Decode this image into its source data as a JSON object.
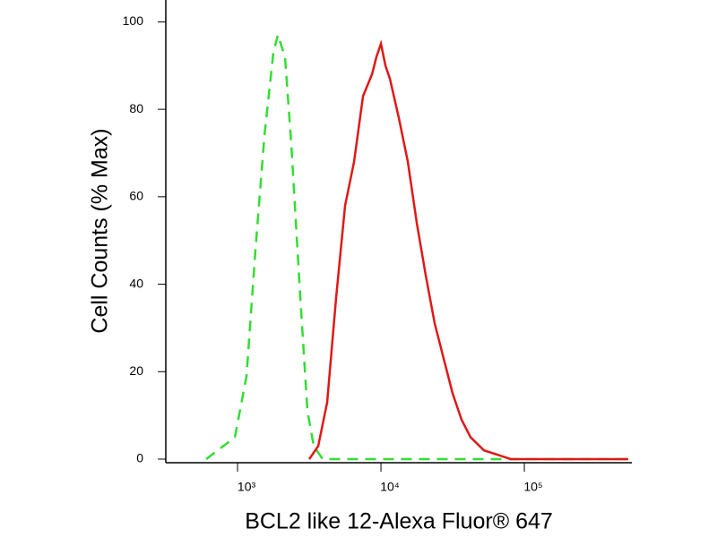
{
  "chart_data": {
    "type": "line",
    "xlabel": "BCL2 like 12-Alexa Fluor® 647",
    "ylabel": "Cell Counts (% Max)",
    "xscale": "log",
    "xlim": [
      316,
      562000
    ],
    "ylim": [
      0,
      105
    ],
    "xticks": [
      {
        "value": 1000,
        "label": "10³"
      },
      {
        "value": 10000,
        "label": "10⁴"
      },
      {
        "value": 100000,
        "label": "10⁵"
      }
    ],
    "yticks": [
      0,
      20,
      40,
      60,
      80,
      100
    ],
    "series": [
      {
        "color": "#33dd33",
        "dash": true,
        "x": [
          604,
          958,
          1155,
          1334,
          1540,
          1778,
          1911,
          2143,
          2371,
          2738,
          3072,
          3400,
          3926,
          6900,
          530000
        ],
        "values": [
          0,
          5,
          19,
          48,
          74,
          93,
          97,
          92,
          72,
          37,
          11,
          3,
          0,
          0,
          0
        ]
      },
      {
        "color": "#e01818",
        "dash": false,
        "x": [
          3162,
          3652,
          4217,
          4870,
          5623,
          6494,
          7499,
          8660,
          9306,
          10000,
          10746,
          11548,
          13335,
          15399,
          17783,
          20535,
          23714,
          27384,
          31623,
          36517,
          42170,
          52330,
          64938,
          80584,
          123000,
          530000
        ],
        "values": [
          0,
          3,
          13,
          37,
          58,
          68,
          83,
          88,
          92,
          95,
          90,
          87,
          78,
          68,
          54,
          42,
          31,
          23,
          15,
          9,
          5,
          2,
          1,
          0,
          0,
          0
        ]
      }
    ]
  }
}
